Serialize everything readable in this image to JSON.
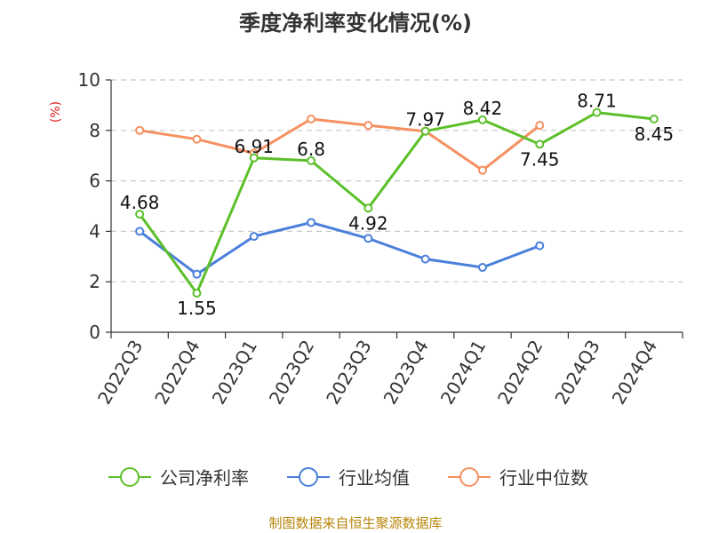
{
  "chart_data": {
    "type": "line",
    "title": "季度净利率变化情况(%)",
    "ylabel": "(%)",
    "xlabel": "",
    "ylim": [
      0,
      10
    ],
    "yticks": [
      "0",
      "2",
      "4",
      "6",
      "8",
      "10"
    ],
    "categories": [
      "2022Q3",
      "2022Q4",
      "2023Q1",
      "2023Q2",
      "2023Q3",
      "2023Q4",
      "2024Q1",
      "2024Q2",
      "2024Q3",
      "2024Q4"
    ],
    "grid": true,
    "legend_position": "bottom",
    "series": [
      {
        "name": "公司净利率",
        "color": "#5cc02a",
        "values": [
          4.68,
          1.55,
          6.91,
          6.8,
          4.92,
          7.97,
          8.42,
          7.45,
          8.71,
          8.45
        ],
        "labels": [
          "4.68",
          "1.55",
          "6.91",
          "6.8",
          "4.92",
          "7.97",
          "8.42",
          "7.45",
          "8.71",
          "8.45"
        ]
      },
      {
        "name": "行业均值",
        "color": "#4a7fdb",
        "values": [
          4.0,
          2.3,
          3.8,
          4.35,
          3.72,
          2.9,
          2.57,
          3.43,
          null,
          null
        ],
        "labels": []
      },
      {
        "name": "行业中位数",
        "color": "#f59060",
        "values": [
          8.0,
          7.65,
          7.1,
          8.45,
          8.2,
          7.97,
          6.42,
          8.2,
          null,
          null
        ],
        "labels": []
      }
    ],
    "source": "制图数据来自恒生聚源数据库"
  }
}
